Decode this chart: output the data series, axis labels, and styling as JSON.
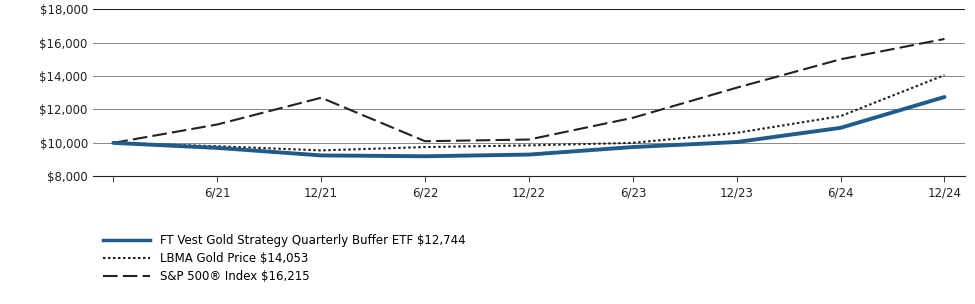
{
  "xlabels": [
    "6/21",
    "12/21",
    "6/22",
    "12/22",
    "6/23",
    "12/23",
    "6/24",
    "12/24"
  ],
  "ylim": [
    8000,
    18000
  ],
  "yticks": [
    8000,
    10000,
    12000,
    14000,
    16000,
    18000
  ],
  "series": {
    "etf": {
      "label": "FT Vest Gold Strategy Quarterly Buffer ETF $12,744",
      "color": "#1f5c8b",
      "linewidth": 2.8,
      "data_x": [
        0,
        1,
        2,
        3,
        4,
        5,
        6,
        7,
        8
      ],
      "data_y": [
        10000,
        9700,
        9250,
        9200,
        9300,
        9750,
        10050,
        10900,
        12744
      ]
    },
    "gold": {
      "label": "LBMA Gold Price $14,053",
      "color": "#222222",
      "linewidth": 1.5,
      "data_x": [
        0,
        1,
        2,
        3,
        4,
        5,
        6,
        7,
        8
      ],
      "data_y": [
        10000,
        9800,
        9550,
        9750,
        9850,
        10000,
        10600,
        11600,
        14053
      ]
    },
    "sp500": {
      "label": "S&P 500® Index $16,215",
      "color": "#222222",
      "linewidth": 1.5,
      "data_x": [
        0,
        1,
        2,
        3,
        4,
        5,
        6,
        7,
        8
      ],
      "data_y": [
        10000,
        11100,
        12700,
        10100,
        10200,
        11500,
        13300,
        15000,
        16215
      ]
    }
  },
  "background_color": "#ffffff",
  "grid_color": "#888888",
  "tick_label_color": "#222222",
  "legend_fontsize": 8.5,
  "tick_fontsize": 8.5
}
